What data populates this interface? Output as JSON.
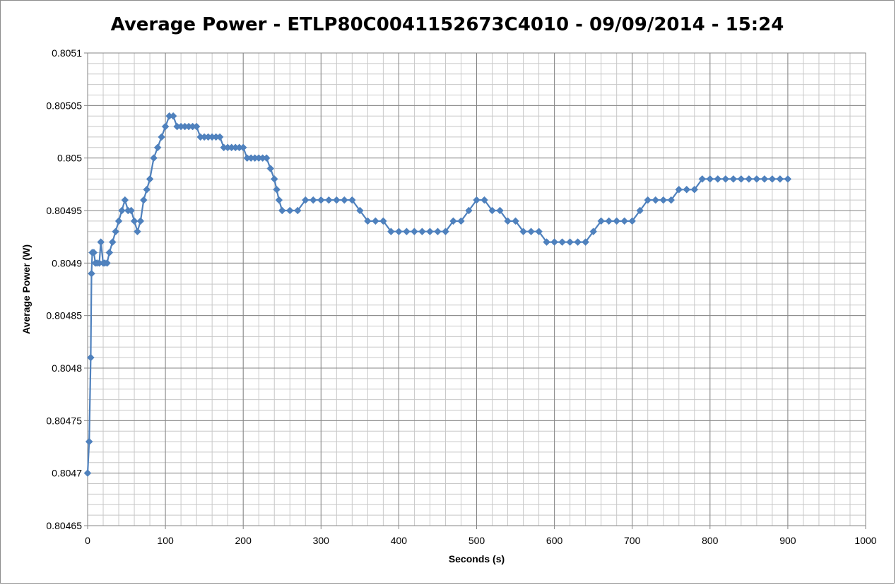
{
  "chart_data": {
    "type": "scatter",
    "title": "Average Power - ETLP80C0041152673C4010 - 09/09/2014 - 15:24",
    "xlabel": "Seconds (s)",
    "ylabel": "Average Power (W)",
    "xlim": [
      0,
      1000
    ],
    "ylim": [
      0.80465,
      0.8051
    ],
    "x_ticks": [
      "0",
      "100",
      "200",
      "300",
      "400",
      "500",
      "600",
      "700",
      "800",
      "900",
      "1000"
    ],
    "y_ticks": [
      "0.80465",
      "0.8047",
      "0.80475",
      "0.8048",
      "0.80485",
      "0.8049",
      "0.80495",
      "0.805",
      "0.80505",
      "0.8051"
    ],
    "grid": true,
    "legend": "none",
    "marker": "diamond",
    "series_color": "#4f81bd",
    "points": [
      [
        0,
        0.8047
      ],
      [
        2,
        0.80473
      ],
      [
        4,
        0.80481
      ],
      [
        5,
        0.80489
      ],
      [
        6,
        0.80491
      ],
      [
        8,
        0.80491
      ],
      [
        10,
        0.8049
      ],
      [
        12,
        0.8049
      ],
      [
        15,
        0.8049
      ],
      [
        17,
        0.80492
      ],
      [
        20,
        0.8049
      ],
      [
        22,
        0.8049
      ],
      [
        25,
        0.8049
      ],
      [
        28,
        0.80491
      ],
      [
        32,
        0.80492
      ],
      [
        36,
        0.80493
      ],
      [
        40,
        0.80494
      ],
      [
        44,
        0.80495
      ],
      [
        48,
        0.80496
      ],
      [
        52,
        0.80495
      ],
      [
        56,
        0.80495
      ],
      [
        60,
        0.80494
      ],
      [
        64,
        0.80493
      ],
      [
        68,
        0.80494
      ],
      [
        72,
        0.80496
      ],
      [
        76,
        0.80497
      ],
      [
        80,
        0.80498
      ],
      [
        85,
        0.805
      ],
      [
        90,
        0.80501
      ],
      [
        95,
        0.80502
      ],
      [
        100,
        0.80503
      ],
      [
        105,
        0.80504
      ],
      [
        110,
        0.80504
      ],
      [
        115,
        0.80503
      ],
      [
        120,
        0.80503
      ],
      [
        125,
        0.80503
      ],
      [
        130,
        0.80503
      ],
      [
        135,
        0.80503
      ],
      [
        140,
        0.80503
      ],
      [
        145,
        0.80502
      ],
      [
        150,
        0.80502
      ],
      [
        155,
        0.80502
      ],
      [
        160,
        0.80502
      ],
      [
        165,
        0.80502
      ],
      [
        170,
        0.80502
      ],
      [
        175,
        0.80501
      ],
      [
        180,
        0.80501
      ],
      [
        185,
        0.80501
      ],
      [
        190,
        0.80501
      ],
      [
        195,
        0.80501
      ],
      [
        200,
        0.80501
      ],
      [
        205,
        0.805
      ],
      [
        210,
        0.805
      ],
      [
        215,
        0.805
      ],
      [
        220,
        0.805
      ],
      [
        225,
        0.805
      ],
      [
        230,
        0.805
      ],
      [
        235,
        0.80499
      ],
      [
        240,
        0.80498
      ],
      [
        243,
        0.80497
      ],
      [
        246,
        0.80496
      ],
      [
        250,
        0.80495
      ],
      [
        260,
        0.80495
      ],
      [
        270,
        0.80495
      ],
      [
        280,
        0.80496
      ],
      [
        290,
        0.80496
      ],
      [
        300,
        0.80496
      ],
      [
        310,
        0.80496
      ],
      [
        320,
        0.80496
      ],
      [
        330,
        0.80496
      ],
      [
        340,
        0.80496
      ],
      [
        350,
        0.80495
      ],
      [
        360,
        0.80494
      ],
      [
        370,
        0.80494
      ],
      [
        380,
        0.80494
      ],
      [
        390,
        0.80493
      ],
      [
        400,
        0.80493
      ],
      [
        410,
        0.80493
      ],
      [
        420,
        0.80493
      ],
      [
        430,
        0.80493
      ],
      [
        440,
        0.80493
      ],
      [
        450,
        0.80493
      ],
      [
        460,
        0.80493
      ],
      [
        470,
        0.80494
      ],
      [
        480,
        0.80494
      ],
      [
        490,
        0.80495
      ],
      [
        500,
        0.80496
      ],
      [
        510,
        0.80496
      ],
      [
        520,
        0.80495
      ],
      [
        530,
        0.80495
      ],
      [
        540,
        0.80494
      ],
      [
        550,
        0.80494
      ],
      [
        560,
        0.80493
      ],
      [
        570,
        0.80493
      ],
      [
        580,
        0.80493
      ],
      [
        590,
        0.80492
      ],
      [
        600,
        0.80492
      ],
      [
        610,
        0.80492
      ],
      [
        620,
        0.80492
      ],
      [
        630,
        0.80492
      ],
      [
        640,
        0.80492
      ],
      [
        650,
        0.80493
      ],
      [
        660,
        0.80494
      ],
      [
        670,
        0.80494
      ],
      [
        680,
        0.80494
      ],
      [
        690,
        0.80494
      ],
      [
        700,
        0.80494
      ],
      [
        710,
        0.80495
      ],
      [
        720,
        0.80496
      ],
      [
        730,
        0.80496
      ],
      [
        740,
        0.80496
      ],
      [
        750,
        0.80496
      ],
      [
        760,
        0.80497
      ],
      [
        770,
        0.80497
      ],
      [
        780,
        0.80497
      ],
      [
        790,
        0.80498
      ],
      [
        800,
        0.80498
      ],
      [
        810,
        0.80498
      ],
      [
        820,
        0.80498
      ],
      [
        830,
        0.80498
      ],
      [
        840,
        0.80498
      ],
      [
        850,
        0.80498
      ],
      [
        860,
        0.80498
      ],
      [
        870,
        0.80498
      ],
      [
        880,
        0.80498
      ],
      [
        890,
        0.80498
      ],
      [
        900,
        0.80498
      ]
    ]
  }
}
